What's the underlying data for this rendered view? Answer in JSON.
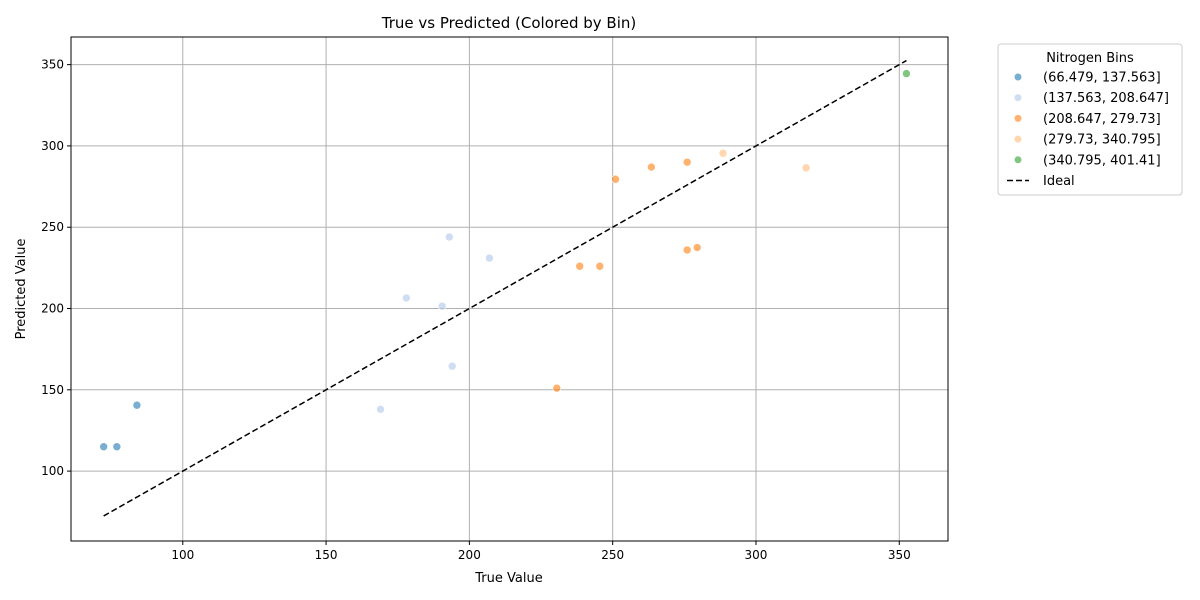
{
  "chart_data": {
    "type": "scatter",
    "title": "True vs Predicted (Colored by Bin)",
    "xlabel": "True Value",
    "ylabel": "Predicted Value",
    "xlim": [
      61,
      367
    ],
    "ylim": [
      57,
      367
    ],
    "xticks": [
      100,
      150,
      200,
      250,
      300,
      350
    ],
    "yticks": [
      100,
      150,
      200,
      250,
      300,
      350
    ],
    "grid": true,
    "legend": {
      "title": "Nitrogen Bins",
      "placement": "outside-top-right",
      "entries": [
        "(66.479, 137.563]",
        "(137.563, 208.647]",
        "(208.647, 279.73]",
        "(279.73, 340.795]",
        "(340.795, 401.41]",
        "Ideal"
      ]
    },
    "series": [
      {
        "name": "(66.479, 137.563]",
        "color": "#1f77b4",
        "points": [
          [
            72.4,
            115
          ],
          [
            77,
            115
          ],
          [
            84,
            140.5
          ]
        ]
      },
      {
        "name": "(137.563, 208.647]",
        "color": "#aec7e8",
        "points": [
          [
            169,
            138
          ],
          [
            178,
            206.5
          ],
          [
            190.5,
            201.5
          ],
          [
            193,
            244
          ],
          [
            194,
            164.5
          ],
          [
            207,
            231
          ]
        ]
      },
      {
        "name": "(208.647, 279.73]",
        "color": "#ff7f0e",
        "points": [
          [
            230.5,
            151
          ],
          [
            238.5,
            226
          ],
          [
            245.5,
            226
          ],
          [
            251,
            279.5
          ],
          [
            263.5,
            287
          ],
          [
            276,
            290
          ],
          [
            276,
            236
          ],
          [
            279.5,
            237.5
          ]
        ]
      },
      {
        "name": "(279.73, 340.795]",
        "color": "#ffbb78",
        "points": [
          [
            288.5,
            295.5
          ],
          [
            317.5,
            286.5
          ]
        ]
      },
      {
        "name": "(340.795, 401.41]",
        "color": "#2ca02c",
        "points": [
          [
            352.5,
            344.5
          ]
        ]
      }
    ],
    "ideal_line": {
      "name": "Ideal",
      "color": "#000000",
      "style": "dashed",
      "x": [
        72.4,
        352.5
      ],
      "y": [
        72.4,
        352.5
      ]
    }
  }
}
